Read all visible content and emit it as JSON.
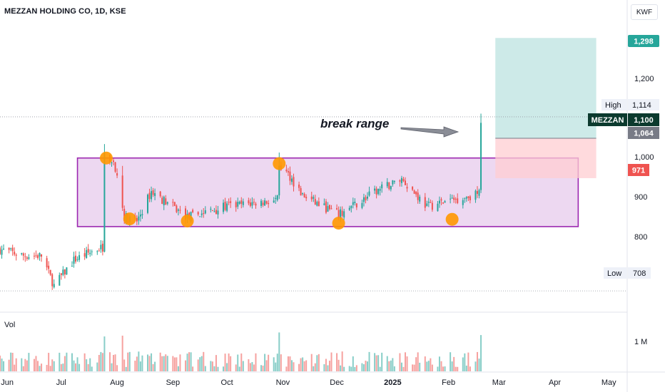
{
  "header": {
    "symbol_line": "MEZZAN HOLDING CO, 1D, KSE",
    "currency": "KWF"
  },
  "annotation": {
    "text": "break range"
  },
  "price_axis": {
    "ticks": [
      "1,200",
      "1,000",
      "900",
      "800"
    ],
    "labels": {
      "target": "1,298",
      "high_tag": "High",
      "high_val": "1,114",
      "ticker": "MEZZAN",
      "last": "1,100",
      "entry": "1,064",
      "stop": "971",
      "low_tag": "Low",
      "low_val": "708"
    }
  },
  "volume": {
    "label": "Vol",
    "tick": "1 M"
  },
  "time_axis": {
    "labels": [
      "Jun",
      "Jul",
      "Aug",
      "Sep",
      "Oct",
      "Nov",
      "Dec",
      "2025",
      "Feb",
      "Mar",
      "Apr",
      "May"
    ]
  },
  "colors": {
    "up": "#26a69a",
    "down": "#ef5350",
    "range_fill": "#e1bee7",
    "range_border": "#9c27b0",
    "target_fill": "#b2dfdb",
    "stop_fill": "#ffcdd2",
    "marker": "#ff9800",
    "arrow": "#8a8d96"
  },
  "chart_data": {
    "type": "candlestick",
    "symbol": "MEZZAN HOLDING CO",
    "interval": "1D",
    "exchange": "KSE",
    "currency": "KWF",
    "ylim": [
      680,
      1340
    ],
    "x_range": [
      "2024-05-28",
      "2025-05-10"
    ],
    "last_price": 1100,
    "period_high": 1114,
    "period_low": 708,
    "range_box": {
      "from": "2024-07-10",
      "to": "2025-04-14",
      "top": 1018,
      "bottom": 858
    },
    "position": {
      "from": "2025-02-27",
      "to": "2025-04-24",
      "entry": 1064,
      "target": 1298,
      "stop": 971
    },
    "touch_markers": [
      {
        "date": "2024-07-26",
        "price": 1018
      },
      {
        "date": "2024-08-08",
        "price": 876
      },
      {
        "date": "2024-09-09",
        "price": 871
      },
      {
        "date": "2024-10-30",
        "price": 1005
      },
      {
        "date": "2024-12-02",
        "price": 866
      },
      {
        "date": "2025-02-03",
        "price": 875
      }
    ],
    "path": [
      {
        "date": "2024-05-28",
        "close": 805
      },
      {
        "date": "2024-06-10",
        "close": 790
      },
      {
        "date": "2024-06-20",
        "close": 790
      },
      {
        "date": "2024-06-27",
        "close": 720
      },
      {
        "date": "2024-07-08",
        "close": 780
      },
      {
        "date": "2024-07-18",
        "close": 800
      },
      {
        "date": "2024-07-24",
        "close": 810
      },
      {
        "date": "2024-07-25",
        "close": 1030
      },
      {
        "date": "2024-07-30",
        "close": 1010
      },
      {
        "date": "2024-08-05",
        "close": 880
      },
      {
        "date": "2024-08-12",
        "close": 870
      },
      {
        "date": "2024-08-20",
        "close": 940
      },
      {
        "date": "2024-09-09",
        "close": 880
      },
      {
        "date": "2024-10-01",
        "close": 905
      },
      {
        "date": "2024-10-29",
        "close": 920
      },
      {
        "date": "2024-10-30",
        "close": 1000
      },
      {
        "date": "2024-11-05",
        "close": 975
      },
      {
        "date": "2024-11-12",
        "close": 930
      },
      {
        "date": "2024-12-02",
        "close": 885
      },
      {
        "date": "2024-12-23",
        "close": 940
      },
      {
        "date": "2025-01-06",
        "close": 970
      },
      {
        "date": "2025-01-20",
        "close": 905
      },
      {
        "date": "2025-02-03",
        "close": 920
      },
      {
        "date": "2025-02-18",
        "close": 935
      },
      {
        "date": "2025-02-19",
        "close": 1100
      }
    ],
    "annotations": [
      "break range"
    ]
  }
}
